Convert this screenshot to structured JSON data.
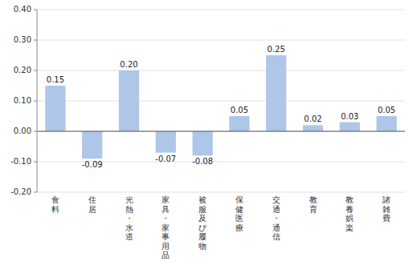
{
  "chart_data": {
    "type": "bar",
    "categories": [
      "食\n料",
      "住\n居",
      "光\n熱\n・\n水\n道",
      "家\n具\n・\n家\n事\n用\n品",
      "被\n服\n及\nび\n履\n物",
      "保\n健\n医\n療",
      "交\n通\n・\n通\n信",
      "教\n育",
      "教\n養\n娯\n楽",
      "諸\n雑\n費"
    ],
    "values": [
      0.15,
      -0.09,
      0.2,
      -0.07,
      -0.08,
      0.05,
      0.25,
      0.02,
      0.03,
      0.05
    ],
    "value_labels": [
      "0.15",
      "-0.09",
      "0.20",
      "-0.07",
      "-0.08",
      "0.05",
      "0.25",
      "0.02",
      "0.03",
      "0.05"
    ],
    "data_labels": true,
    "color": "#aec6e8",
    "ylim": [
      -0.2,
      0.4
    ],
    "yticks": [
      {
        "value": -0.2,
        "label": "-0.20"
      },
      {
        "value": -0.1,
        "label": "-0.10"
      },
      {
        "value": 0.0,
        "label": "0.00"
      },
      {
        "value": 0.1,
        "label": "0.10"
      },
      {
        "value": 0.2,
        "label": "0.20"
      },
      {
        "value": 0.3,
        "label": "0.30"
      },
      {
        "value": 0.4,
        "label": "0.40"
      }
    ],
    "grid": true
  }
}
